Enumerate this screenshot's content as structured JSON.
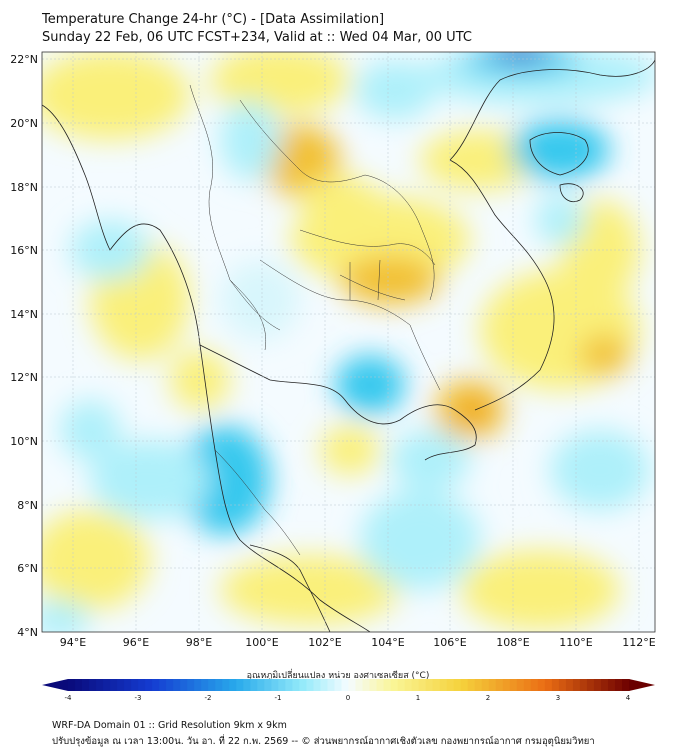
{
  "header": {
    "title_line1": "Temperature Change 24-hr (°C) - [Data Assimilation]",
    "title_line2": "Sunday 22 Feb, 06 UTC FCST+234, Valid at :: Wed 04 Mar, 00 UTC"
  },
  "map": {
    "lat_labels": [
      "22°N",
      "20°N",
      "18°N",
      "16°N",
      "14°N",
      "12°N",
      "10°N",
      "8°N",
      "6°N",
      "4°N"
    ],
    "lon_labels": [
      "94°E",
      "96°E",
      "98°E",
      "100°E",
      "102°E",
      "104°E",
      "106°E",
      "108°E",
      "110°E",
      "112°E"
    ],
    "lat_range": [
      4,
      22.2
    ],
    "lon_range": [
      93,
      112.5
    ],
    "field_colors": {
      "cold_strong": "#1f3fbf",
      "cold": "#35c8ee",
      "cool": "#aef0fa",
      "neutral": "#f4fbff",
      "warm": "#faf07a",
      "warm_strong": "#f2c030",
      "hot": "#f0a020"
    }
  },
  "colorbar": {
    "label": "อุณหภูมิเปลี่ยนแปลง หน่วย องศาเซลเซียส (°C)",
    "ticks": [
      "-4",
      "-3",
      "-2",
      "-1",
      "0",
      "1",
      "2",
      "3",
      "4"
    ],
    "range": [
      -4,
      4
    ]
  },
  "footer": {
    "line1": "WRF-DA Domain 01 :: Grid Resolution 9km x 9km",
    "line2": "ปรับปรุงข้อมูล ณ เวลา 13:00น. วัน อา. ที่ 22 ก.พ. 2569 -- © ส่วนพยากรณ์อากาศเชิงตัวเลข กองพยากรณ์อากาศ กรมอุตุนิยมวิทยา"
  }
}
